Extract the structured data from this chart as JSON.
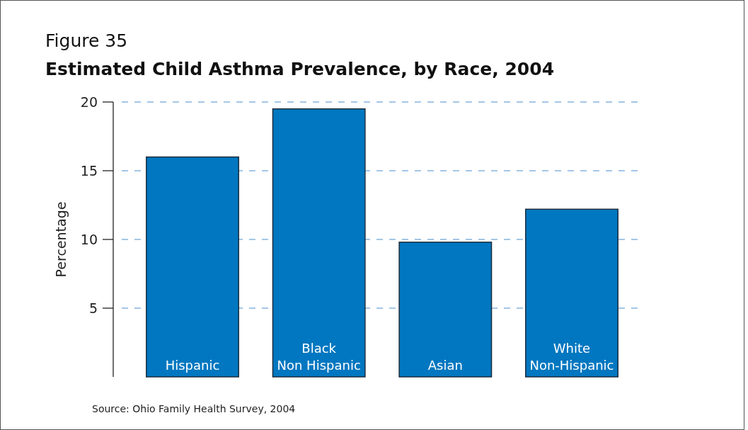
{
  "chart_data": {
    "type": "bar",
    "title": "Figure 35",
    "subtitle": "Estimated Child Asthma Prevalence, by Race, 2004",
    "ylabel": "Percentage",
    "categories": [
      "Hispanic",
      "Black Non Hispanic",
      "Asian",
      "White Non-Hispanic"
    ],
    "values": [
      16,
      19.5,
      9.8,
      12.2
    ],
    "color": "#0077c0",
    "ylim": [
      0,
      20
    ],
    "yticks": [
      5,
      10,
      15,
      20
    ],
    "grid": "y",
    "line_style": "dashed",
    "annotations": [
      "Source:  Ohio Family Health Survey, 2004"
    ]
  }
}
